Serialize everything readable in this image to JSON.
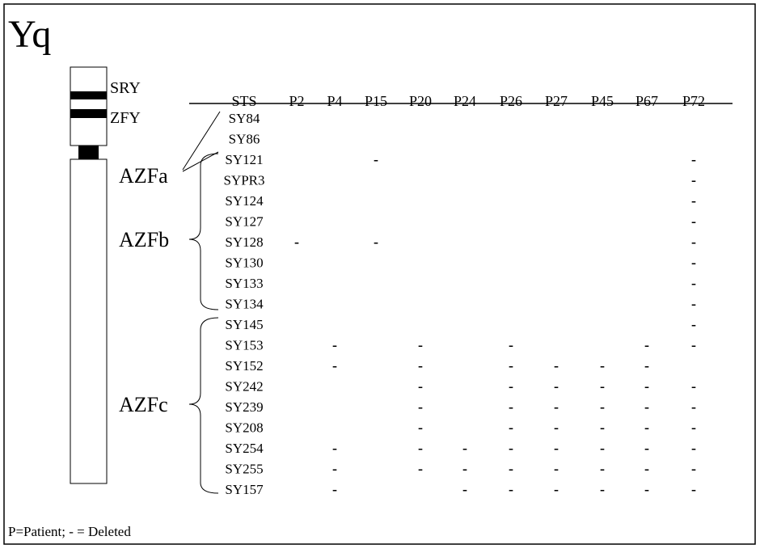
{
  "title": "Yq",
  "chromosome": {
    "labels": [
      "SRY",
      "ZFY"
    ],
    "regions": [
      "AZFa",
      "AZFb",
      "AZFc"
    ]
  },
  "table": {
    "header": [
      "STS",
      "P2",
      "P4",
      "P15",
      "P20",
      "P24",
      "P26",
      "P27",
      "P45",
      "P67",
      "P72"
    ],
    "rows": [
      {
        "sts": "SY84",
        "cells": [
          null,
          null,
          null,
          null,
          null,
          null,
          null,
          null,
          null,
          null
        ]
      },
      {
        "sts": "SY86",
        "cells": [
          null,
          null,
          null,
          null,
          null,
          null,
          null,
          null,
          null,
          null
        ]
      },
      {
        "sts": "SY121",
        "cells": [
          null,
          null,
          "-",
          null,
          null,
          null,
          null,
          null,
          null,
          "-"
        ]
      },
      {
        "sts": "SYPR3",
        "cells": [
          null,
          null,
          null,
          null,
          null,
          null,
          null,
          null,
          null,
          "-"
        ]
      },
      {
        "sts": "SY124",
        "cells": [
          null,
          null,
          null,
          null,
          null,
          null,
          null,
          null,
          null,
          "-"
        ]
      },
      {
        "sts": "SY127",
        "cells": [
          null,
          null,
          null,
          null,
          null,
          null,
          null,
          null,
          null,
          "-"
        ]
      },
      {
        "sts": "SY128",
        "cells": [
          "-",
          null,
          "-",
          null,
          null,
          null,
          null,
          null,
          null,
          "-"
        ]
      },
      {
        "sts": "SY130",
        "cells": [
          null,
          null,
          null,
          null,
          null,
          null,
          null,
          null,
          null,
          "-"
        ]
      },
      {
        "sts": "SY133",
        "cells": [
          null,
          null,
          null,
          null,
          null,
          null,
          null,
          null,
          null,
          "-"
        ]
      },
      {
        "sts": "SY134",
        "cells": [
          null,
          null,
          null,
          null,
          null,
          null,
          null,
          null,
          null,
          "-"
        ]
      },
      {
        "sts": "SY145",
        "cells": [
          null,
          null,
          null,
          null,
          null,
          null,
          null,
          null,
          null,
          "-"
        ]
      },
      {
        "sts": "SY153",
        "cells": [
          null,
          "-",
          null,
          "-",
          null,
          "-",
          null,
          null,
          "-",
          "-"
        ]
      },
      {
        "sts": "SY152",
        "cells": [
          null,
          "-",
          null,
          "-",
          null,
          "-",
          "-",
          "-",
          "-",
          null
        ]
      },
      {
        "sts": "SY242",
        "cells": [
          null,
          null,
          null,
          "-",
          null,
          "-",
          "-",
          "-",
          "-",
          "-"
        ]
      },
      {
        "sts": "SY239",
        "cells": [
          null,
          null,
          null,
          "-",
          null,
          "-",
          "-",
          "-",
          "-",
          "-"
        ]
      },
      {
        "sts": "SY208",
        "cells": [
          null,
          null,
          null,
          "-",
          null,
          "-",
          "-",
          "-",
          "-",
          "-"
        ]
      },
      {
        "sts": "SY254",
        "cells": [
          null,
          "-",
          null,
          "-",
          "-",
          "-",
          "-",
          "-",
          "-",
          "-"
        ]
      },
      {
        "sts": "SY255",
        "cells": [
          null,
          "-",
          null,
          "-",
          "-",
          "-",
          "-",
          "-",
          "-",
          "-"
        ]
      },
      {
        "sts": "SY157",
        "cells": [
          null,
          "-",
          null,
          null,
          "-",
          "-",
          "-",
          "-",
          "-",
          "-"
        ]
      }
    ]
  },
  "footer": "P=Patient; - = Deleted"
}
